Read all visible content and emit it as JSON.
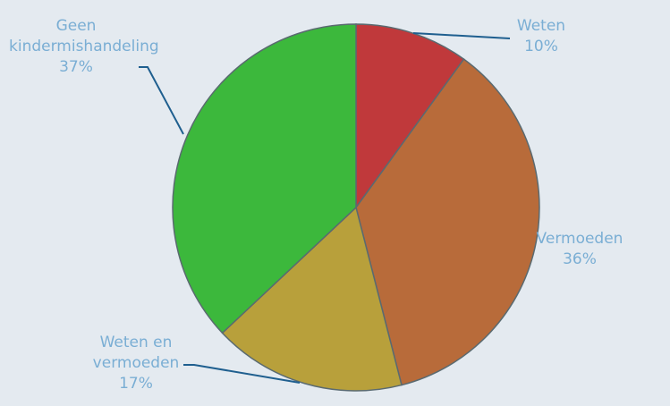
{
  "chart_data": {
    "type": "pie",
    "categories": [
      "Weten",
      "Vermoeden",
      "Weten en vermoeden",
      "Geen kindermishandeling"
    ],
    "values": [
      10,
      36,
      17,
      37
    ],
    "value_labels": [
      "10%",
      "36%",
      "17%",
      "37%"
    ],
    "colors": [
      "#c0393b",
      "#b86b3a",
      "#b8a03b",
      "#3cb83c"
    ]
  }
}
